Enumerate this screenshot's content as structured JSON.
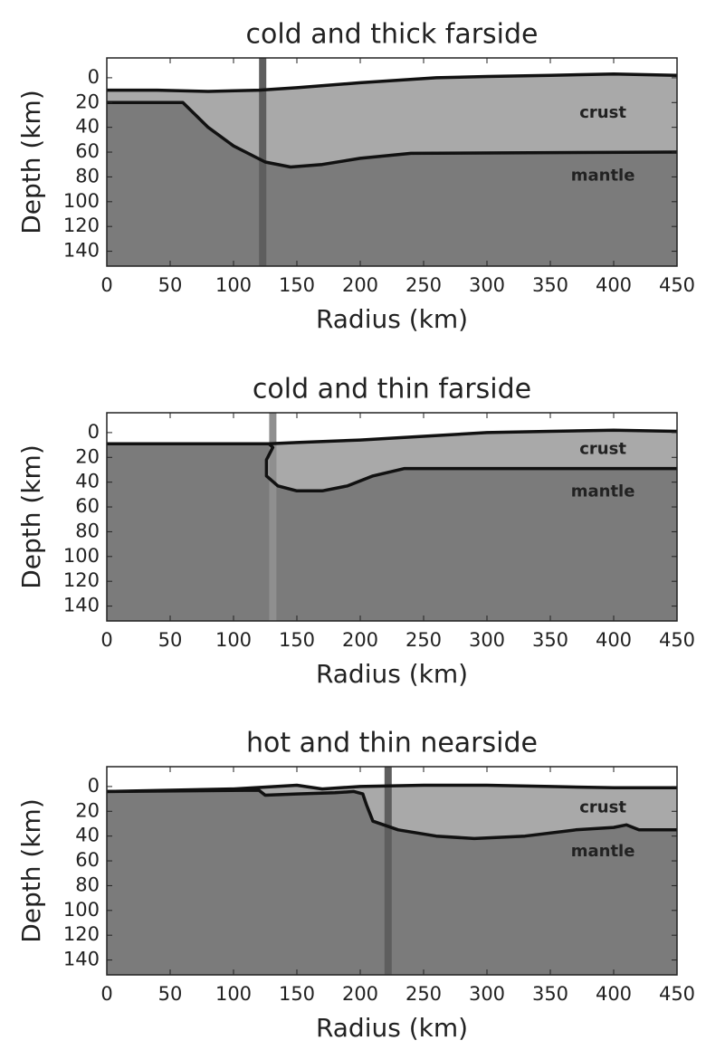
{
  "chart_data": [
    {
      "type": "profile",
      "title": "cold and thick farside",
      "x_label": "Radius (km)",
      "y_label": "Depth (km)",
      "annotations": [
        "crust",
        "mantle"
      ],
      "xlim": [
        0,
        450
      ],
      "xticks": [
        0,
        50,
        100,
        150,
        200,
        250,
        300,
        350,
        400,
        450
      ],
      "ylim": [
        -16,
        152
      ],
      "yticks": [
        0,
        20,
        40,
        60,
        80,
        100,
        120,
        140
      ],
      "y_inverted": true,
      "crust_color": "#a9a9a9",
      "mantle_color": "#7b7b7b",
      "line_color": "#111111",
      "marker_color": "#5e5e5e",
      "marker_x": 123,
      "surface": {
        "x": [
          0,
          40,
          80,
          120,
          150,
          200,
          260,
          300,
          350,
          400,
          450
        ],
        "values": [
          10,
          10,
          11,
          10,
          8,
          4,
          0,
          -1,
          -2,
          -3,
          -2
        ]
      },
      "moho": {
        "x": [
          0,
          60,
          65,
          80,
          100,
          125,
          145,
          170,
          200,
          240,
          450
        ],
        "values": [
          20,
          20,
          25,
          40,
          55,
          68,
          72,
          70,
          65,
          61,
          60
        ]
      }
    },
    {
      "type": "profile",
      "title": "cold and thin farside",
      "x_label": "Radius (km)",
      "y_label": "Depth (km)",
      "annotations": [
        "crust",
        "mantle"
      ],
      "xlim": [
        0,
        450
      ],
      "xticks": [
        0,
        50,
        100,
        150,
        200,
        250,
        300,
        350,
        400,
        450
      ],
      "ylim": [
        -16,
        152
      ],
      "yticks": [
        0,
        20,
        40,
        60,
        80,
        100,
        120,
        140
      ],
      "y_inverted": true,
      "crust_color": "#a9a9a9",
      "mantle_color": "#7b7b7b",
      "line_color": "#111111",
      "marker_color": "#8f8f8f",
      "marker_x": 131,
      "surface": {
        "x": [
          0,
          128,
          150,
          200,
          250,
          300,
          350,
          400,
          450
        ],
        "values": [
          9,
          9,
          8,
          6,
          3,
          0,
          -1,
          -2,
          -1
        ]
      },
      "moho": {
        "x": [
          0,
          128,
          131,
          126,
          126,
          135,
          150,
          170,
          190,
          210,
          235,
          450
        ],
        "values": [
          9,
          9,
          12,
          22,
          35,
          43,
          47,
          47,
          43,
          35,
          29,
          29
        ]
      }
    },
    {
      "type": "profile",
      "title": "hot and thin nearside",
      "x_label": "Radius (km)",
      "y_label": "Depth (km)",
      "annotations": [
        "crust",
        "mantle"
      ],
      "xlim": [
        0,
        450
      ],
      "xticks": [
        0,
        50,
        100,
        150,
        200,
        250,
        300,
        350,
        400,
        450
      ],
      "ylim": [
        -16,
        152
      ],
      "yticks": [
        0,
        20,
        40,
        60,
        80,
        100,
        120,
        140
      ],
      "y_inverted": true,
      "crust_color": "#a9a9a9",
      "mantle_color": "#7b7b7b",
      "line_color": "#111111",
      "marker_color": "#5e5e5e",
      "marker_x": 222,
      "surface": {
        "x": [
          0,
          100,
          150,
          170,
          200,
          250,
          300,
          350,
          400,
          450
        ],
        "values": [
          4,
          2,
          -1,
          2,
          0,
          -1,
          -1,
          0,
          1,
          1
        ]
      },
      "moho": {
        "x": [
          0,
          120,
          125,
          150,
          180,
          195,
          202,
          205,
          210,
          230,
          260,
          290,
          330,
          370,
          400,
          410,
          420,
          450
        ],
        "values": [
          4,
          3,
          7,
          6,
          5,
          4,
          6,
          15,
          28,
          35,
          40,
          42,
          40,
          35,
          33,
          31,
          35,
          35
        ]
      }
    }
  ]
}
